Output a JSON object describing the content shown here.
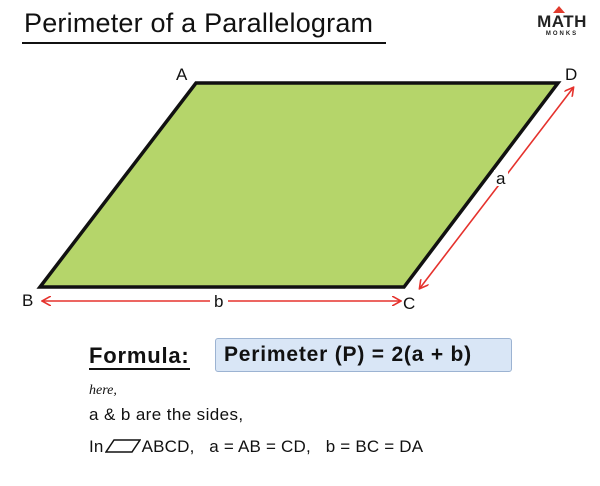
{
  "title": "Perimeter of a Parallelogram",
  "logo": {
    "main": "MATH",
    "sub": "MONKS",
    "accent_color": "#e03a2c"
  },
  "diagram": {
    "vertices": {
      "A": "A",
      "B": "B",
      "C": "C",
      "D": "D"
    },
    "side_a": "a",
    "side_b": "b",
    "fill_color": "#b5d56a",
    "arrow_color": "#e5322d"
  },
  "formula": {
    "label": "Formula:",
    "expression": "Perimeter (P) = 2(a + b)"
  },
  "notes": {
    "here": "here,",
    "line1": "a & b are the sides,",
    "line2_prefix": "In",
    "line2_rest": "ABCD,   a = AB = CD,   b = BC = DA"
  }
}
